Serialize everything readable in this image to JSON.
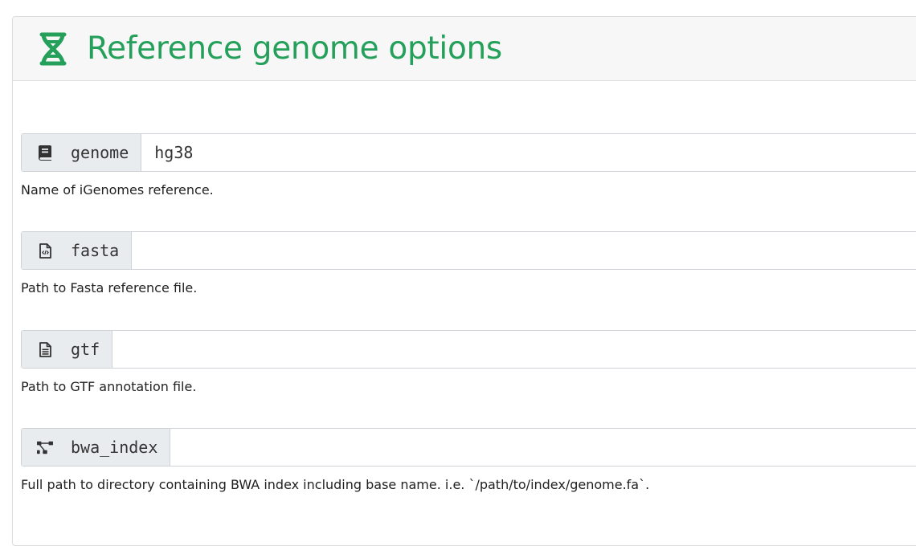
{
  "section": {
    "title": "Reference genome options",
    "icon": "dna-icon",
    "accent_color": "#24a05a"
  },
  "params": [
    {
      "label": "genome",
      "icon": "book-icon",
      "value": "hg38",
      "help": "Name of iGenomes reference."
    },
    {
      "label": "fasta",
      "icon": "file-code-icon",
      "value": "",
      "help": "Path to Fasta reference file."
    },
    {
      "label": "gtf",
      "icon": "file-alt-icon",
      "value": "",
      "help": "Path to GTF annotation file."
    },
    {
      "label": "bwa_index",
      "icon": "project-diagram-icon",
      "value": "",
      "help": "Full path to directory containing BWA index including base name. i.e. `/path/to/index/genome.fa`."
    }
  ]
}
